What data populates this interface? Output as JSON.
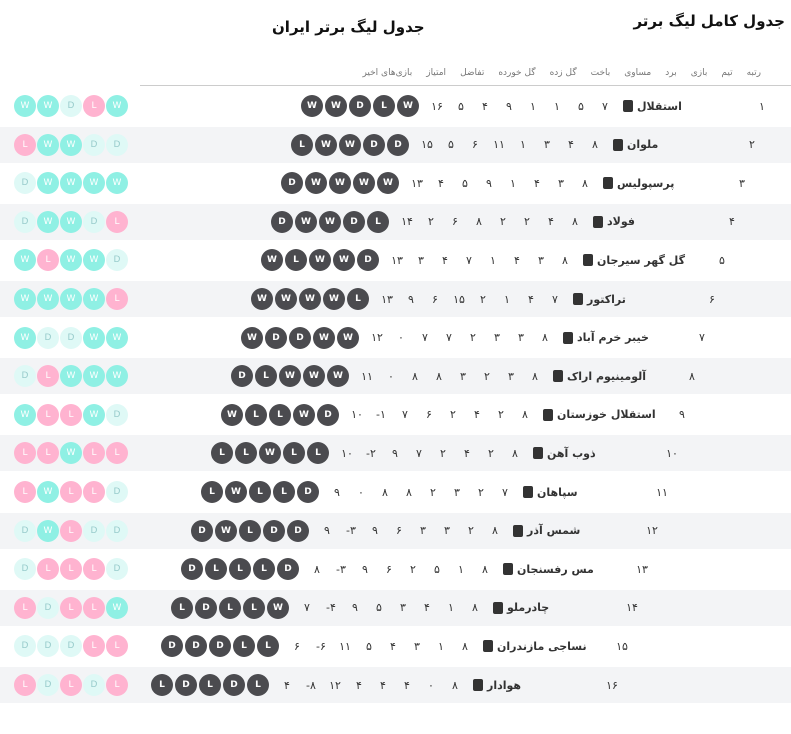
{
  "title": "جدول لیگ برتر ایران",
  "subtitle": "جدول کامل لیگ برتر",
  "headers": [
    "رتبه",
    "تیم",
    "بازی",
    "برد",
    "مساوی",
    "باخت",
    "گل زده",
    "گل خورده",
    "تفاضل",
    "امتیاز",
    "بازی‌های اخیر"
  ],
  "colors": {
    "win": "#8ff0e4",
    "loss": "#ffb3d0",
    "draw": "#dff9f6",
    "dark": "#4b4b4f"
  },
  "teams": [
    {
      "rank": "۱",
      "name": "استقلال",
      "stats": [
        "۷",
        "۵",
        "۱",
        "۱",
        "۹",
        "۴",
        "۵",
        "۱۶"
      ],
      "form": [
        "W",
        "W",
        "D",
        "L",
        "W"
      ]
    },
    {
      "rank": "۲",
      "name": "ملوان",
      "stats": [
        "۸",
        "۴",
        "۳",
        "۱",
        "۱۱",
        "۶",
        "۵",
        "۱۵"
      ],
      "form": [
        "L",
        "W",
        "W",
        "D",
        "D"
      ]
    },
    {
      "rank": "۳",
      "name": "پرسپولیس",
      "stats": [
        "۸",
        "۳",
        "۴",
        "۱",
        "۹",
        "۵",
        "۴",
        "۱۳"
      ],
      "form": [
        "D",
        "W",
        "W",
        "W",
        "W"
      ]
    },
    {
      "rank": "۴",
      "name": "فولاد",
      "stats": [
        "۸",
        "۴",
        "۲",
        "۲",
        "۸",
        "۶",
        "۲",
        "۱۴"
      ],
      "form": [
        "D",
        "W",
        "W",
        "D",
        "L"
      ]
    },
    {
      "rank": "۵",
      "name": "گل گهر سیرجان",
      "stats": [
        "۸",
        "۳",
        "۴",
        "۱",
        "۷",
        "۴",
        "۳",
        "۱۳"
      ],
      "form": [
        "W",
        "L",
        "W",
        "W",
        "D"
      ]
    },
    {
      "rank": "۶",
      "name": "تراکتور",
      "stats": [
        "۷",
        "۴",
        "۱",
        "۲",
        "۱۵",
        "۶",
        "۹",
        "۱۳"
      ],
      "form": [
        "W",
        "W",
        "W",
        "W",
        "L"
      ]
    },
    {
      "rank": "۷",
      "name": "خیبر خرم آباد",
      "stats": [
        "۸",
        "۳",
        "۳",
        "۲",
        "۷",
        "۷",
        "۰",
        "۱۲"
      ],
      "form": [
        "W",
        "D",
        "D",
        "W",
        "W"
      ]
    },
    {
      "rank": "۸",
      "name": "آلومینیوم اراک",
      "stats": [
        "۸",
        "۳",
        "۲",
        "۳",
        "۸",
        "۸",
        "۰",
        "۱۱"
      ],
      "form": [
        "D",
        "L",
        "W",
        "W",
        "W"
      ]
    },
    {
      "rank": "۹",
      "name": "استقلال خوزستان",
      "stats": [
        "۸",
        "۲",
        "۴",
        "۲",
        "۶",
        "۷",
        "-۱",
        "۱۰"
      ],
      "form": [
        "W",
        "L",
        "L",
        "W",
        "D"
      ]
    },
    {
      "rank": "۱۰",
      "name": "ذوب آهن",
      "stats": [
        "۸",
        "۲",
        "۴",
        "۲",
        "۷",
        "۹",
        "-۲",
        "۱۰"
      ],
      "form": [
        "L",
        "L",
        "W",
        "L",
        "L"
      ]
    },
    {
      "rank": "۱۱",
      "name": "سپاهان",
      "stats": [
        "۷",
        "۲",
        "۳",
        "۲",
        "۸",
        "۸",
        "۰",
        "۹"
      ],
      "form": [
        "L",
        "W",
        "L",
        "L",
        "D"
      ]
    },
    {
      "rank": "۱۲",
      "name": "شمس آذر",
      "stats": [
        "۸",
        "۲",
        "۳",
        "۳",
        "۶",
        "۹",
        "-۳",
        "۹"
      ],
      "form": [
        "D",
        "W",
        "L",
        "D",
        "D"
      ]
    },
    {
      "rank": "۱۳",
      "name": "مس رفسنجان",
      "stats": [
        "۸",
        "۱",
        "۵",
        "۲",
        "۶",
        "۹",
        "-۳",
        "۸"
      ],
      "form": [
        "D",
        "L",
        "L",
        "L",
        "D"
      ]
    },
    {
      "rank": "۱۴",
      "name": "چادرملو",
      "stats": [
        "۸",
        "۱",
        "۴",
        "۳",
        "۵",
        "۹",
        "-۴",
        "۷"
      ],
      "form": [
        "L",
        "D",
        "L",
        "L",
        "W"
      ]
    },
    {
      "rank": "۱۵",
      "name": "نساجی مازندران",
      "stats": [
        "۸",
        "۱",
        "۳",
        "۴",
        "۵",
        "۱۱",
        "-۶",
        "۶"
      ],
      "form": [
        "D",
        "D",
        "D",
        "L",
        "L"
      ]
    },
    {
      "rank": "۱۶",
      "name": "هوادار",
      "stats": [
        "۸",
        "۰",
        "۴",
        "۴",
        "۴",
        "۱۲",
        "-۸",
        "۴"
      ],
      "form": [
        "L",
        "D",
        "L",
        "D",
        "L"
      ]
    }
  ]
}
